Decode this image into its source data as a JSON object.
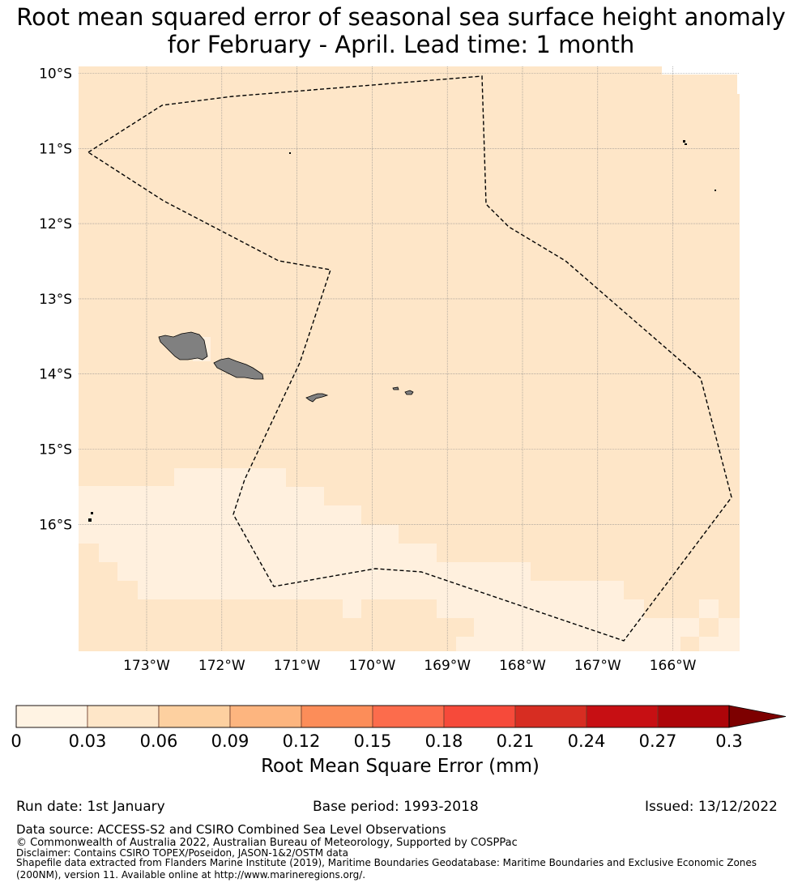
{
  "title": {
    "line1": "Root mean squared error of seasonal sea surface height anomaly",
    "line2": "for February - April. Lead time: 1 month"
  },
  "map": {
    "lat_labels": [
      "10°S",
      "11°S",
      "12°S",
      "13°S",
      "14°S",
      "15°S",
      "16°S"
    ],
    "lon_labels": [
      "173°W",
      "172°W",
      "171°W",
      "170°W",
      "169°W",
      "168°W",
      "167°W",
      "166°W"
    ],
    "colors": {
      "water_main": "#fee6c8",
      "water_light": "#fff0de",
      "land": "#808080",
      "eez_line": "#000000"
    }
  },
  "colorbar": {
    "ticks": [
      "0",
      "0.03",
      "0.06",
      "0.09",
      "0.12",
      "0.15",
      "0.18",
      "0.21",
      "0.24",
      "0.27",
      "0.3"
    ],
    "colors": [
      "#fff3e3",
      "#fee6c8",
      "#fdd0a0",
      "#fdb57f",
      "#fc8d59",
      "#fc6c4c",
      "#f64a3a",
      "#d72d22",
      "#c70f13",
      "#ad0509",
      "#7d0000"
    ],
    "label": "Root Mean Square Error (mm)"
  },
  "footer": {
    "run_date": "Run date: 1st January",
    "base_period": "Base period: 1993-2018",
    "issued": "Issued: 13/12/2022",
    "data_source": "Data source: ACCESS-S2 and CSIRO Combined Sea Level Observations",
    "copyright": "© Commonwealth of Australia 2022, Australian Bureau of Meteorology, Supported by COSPPac",
    "disclaimer": "Disclaimer: Contains CSIRO TOPEX/Poseidon, JASON-1&2/OSTM data",
    "shapefile_line1": "Shapefile data extracted from Flanders Marine Institute (2019), Maritime Boundaries Geodatabase: Maritime Boundaries and Exclusive Economic Zones",
    "shapefile_line2": "(200NM), version 11. Available online at http://www.marineregions.org/."
  }
}
